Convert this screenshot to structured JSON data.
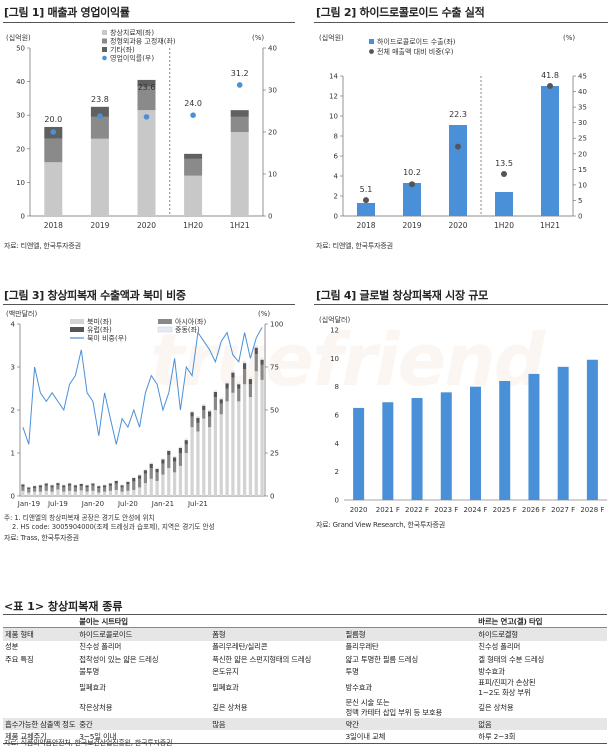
{
  "watermark": "truefriend",
  "fig1": {
    "title": "[그림 1] 매출과 영업이익률",
    "left_unit": "(십억원)",
    "right_unit": "(%)",
    "legend": [
      "창상치료제(좌)",
      "정형외과용 고정재(좌)",
      "기타(좌)",
      "영업이익률(우)"
    ],
    "colors": [
      "#c8c8c8",
      "#8a8a8a",
      "#606060",
      "#4a90d9"
    ],
    "categories": [
      "2018",
      "2019",
      "2020",
      "1H20",
      "1H21"
    ],
    "stacks": [
      [
        16,
        7,
        3.5
      ],
      [
        23,
        6.5,
        3
      ],
      [
        31.5,
        7,
        2
      ],
      [
        12,
        5,
        1.5
      ],
      [
        25,
        4.5,
        2
      ]
    ],
    "margin": [
      20.0,
      23.8,
      23.6,
      24.0,
      31.2
    ],
    "margin_labels": [
      "20.0",
      "23.8",
      "23.6",
      "24.0",
      "31.2"
    ],
    "ylim": [
      0,
      50
    ],
    "y2lim": [
      0,
      40
    ],
    "yticks": [
      "0",
      "10",
      "20",
      "30",
      "40",
      "50"
    ],
    "y2ticks": [
      "0",
      "10",
      "20",
      "30",
      "40"
    ],
    "source": "자료: 티앤엘, 한국투자증권"
  },
  "fig2": {
    "title": "[그림 2] 하이드로콜로이드 수출 실적",
    "left_unit": "(십억원)",
    "right_unit": "(%)",
    "legend": [
      "하이드로콜로이드 수출(좌)",
      "전체 매출액 대비 비중(우)"
    ],
    "colors": [
      "#4a90d9",
      "#555555"
    ],
    "categories": [
      "2018",
      "2019",
      "2020",
      "1H20",
      "1H21"
    ],
    "values": [
      1.3,
      3.3,
      9.1,
      2.4,
      13.0
    ],
    "share": [
      5.1,
      10.2,
      22.3,
      13.5,
      41.8
    ],
    "share_labels": [
      "5.1",
      "10.2",
      "22.3",
      "13.5",
      "41.8"
    ],
    "ylim": [
      0,
      14
    ],
    "y2lim": [
      0,
      45
    ],
    "yticks": [
      "0",
      "2",
      "4",
      "6",
      "8",
      "10",
      "12",
      "14"
    ],
    "y2ticks": [
      "0",
      "5",
      "10",
      "15",
      "20",
      "25",
      "30",
      "35",
      "40",
      "45"
    ],
    "source": "자료: 티앤엘, 한국투자증권"
  },
  "fig3": {
    "title": "[그림 3] 창상피복재 수출액과 북미 비중",
    "left_unit": "(백만달러)",
    "right_unit": "(%)",
    "legend": [
      "북미(좌)",
      "아시아(좌)",
      "유럽(좌)",
      "중동(좌)",
      "북미 비중(우)"
    ],
    "colors": [
      "#d3d3d3",
      "#888888",
      "#555555",
      "#e3eaf4",
      "#4a90d9"
    ],
    "xticks": [
      "Jan-19",
      "Jul-19",
      "Jan-20",
      "Jul-20",
      "Jan-21",
      "Jul-21"
    ],
    "ylim": [
      0,
      4
    ],
    "y2lim": [
      0,
      100
    ],
    "yticks": [
      "0",
      "1",
      "2",
      "3",
      "4"
    ],
    "y2ticks": [
      "0",
      "25",
      "50",
      "75",
      "100"
    ],
    "na": [
      0.12,
      0.08,
      0.1,
      0.1,
      0.12,
      0.1,
      0.15,
      0.1,
      0.12,
      0.1,
      0.13,
      0.1,
      0.12,
      0.08,
      0.1,
      0.12,
      0.14,
      0.1,
      0.12,
      0.14,
      0.2,
      0.3,
      0.4,
      0.35,
      0.5,
      0.65,
      0.55,
      0.7,
      1.0,
      1.6,
      1.5,
      1.8,
      1.6,
      2.0,
      1.9,
      2.2,
      2.4,
      2.2,
      2.6,
      2.3,
      2.9,
      2.7
    ],
    "asia": [
      0.1,
      0.08,
      0.08,
      0.1,
      0.12,
      0.1,
      0.1,
      0.1,
      0.12,
      0.1,
      0.1,
      0.1,
      0.12,
      0.1,
      0.1,
      0.12,
      0.15,
      0.1,
      0.15,
      0.2,
      0.2,
      0.22,
      0.25,
      0.2,
      0.25,
      0.3,
      0.25,
      0.3,
      0.2,
      0.25,
      0.2,
      0.2,
      0.25,
      0.3,
      0.25,
      0.3,
      0.35,
      0.3,
      0.35,
      0.3,
      0.4,
      0.35
    ],
    "europe": [
      0.05,
      0.04,
      0.05,
      0.05,
      0.05,
      0.05,
      0.05,
      0.05,
      0.05,
      0.05,
      0.05,
      0.05,
      0.05,
      0.05,
      0.05,
      0.05,
      0.06,
      0.05,
      0.06,
      0.08,
      0.08,
      0.08,
      0.1,
      0.08,
      0.1,
      0.1,
      0.1,
      0.12,
      0.1,
      0.1,
      0.12,
      0.1,
      0.12,
      0.12,
      0.1,
      0.12,
      0.12,
      0.1,
      0.14,
      0.12,
      0.15,
      0.12
    ],
    "mideast": [
      0.02,
      0.02,
      0.02,
      0.02,
      0.02,
      0.02,
      0.02,
      0.02,
      0.02,
      0.02,
      0.02,
      0.02,
      0.02,
      0.02,
      0.02,
      0.02,
      0.02,
      0.02,
      0.02,
      0.02,
      0.03,
      0.03,
      0.03,
      0.03,
      0.03,
      0.03,
      0.03,
      0.03,
      0.04,
      0.04,
      0.04,
      0.04,
      0.04,
      0.04,
      0.04,
      0.04,
      0.05,
      0.05,
      0.05,
      0.05,
      0.05,
      0.05
    ],
    "share": [
      40,
      30,
      75,
      60,
      55,
      60,
      55,
      50,
      65,
      70,
      85,
      60,
      55,
      35,
      60,
      45,
      30,
      45,
      40,
      50,
      40,
      60,
      70,
      65,
      50,
      60,
      80,
      50,
      75,
      70,
      95,
      90,
      85,
      78,
      90,
      95,
      82,
      78,
      95,
      80,
      92,
      98
    ],
    "notes": [
      "주: 1. 티앤엘의 창상피복재 공장은 경기도 안성에 위치",
      "2. HS code: 3005904000(조제 드레싱과 습포제), 지역은 경기도 안성"
    ],
    "source": "자료: Trass, 한국투자증권"
  },
  "fig4": {
    "title": "[그림 4] 글로벌 창상피복재 시장 규모",
    "left_unit": "(십억달러)",
    "color": "#4a90d9",
    "categories": [
      "2020",
      "2021 F",
      "2022 F",
      "2023 F",
      "2024 F",
      "2025 F",
      "2026 F",
      "2027 F",
      "2028 F"
    ],
    "values": [
      6.5,
      6.9,
      7.2,
      7.6,
      8.0,
      8.4,
      8.9,
      9.4,
      9.9
    ],
    "ylim": [
      0,
      12
    ],
    "yticks": [
      "0",
      "2",
      "4",
      "6",
      "8",
      "10",
      "12"
    ],
    "source": "자료: Grand View Research, 한국투자증권"
  },
  "table1": {
    "title": "<표 1> 창상피복재 종류",
    "header": [
      "",
      "붙이는 시트타입",
      "",
      "",
      "바르는 연고(겔) 타입"
    ],
    "rows": [
      [
        "제품 형태",
        "하이드로콜로이드",
        "폼형",
        "필름형",
        "하이드로겔형"
      ],
      [
        "성분",
        "친수성 폴리머",
        "폴리우레탄/실리콘",
        "폴리우레탄",
        "친수성 폴리머"
      ],
      [
        "주요 특징",
        "접착성이 있는 얇은 드레싱",
        "푹신한 얇은 스펀지형태의 드레싱",
        "얇고 투명한 필름 드레싱",
        "겔 형태의 수분 드레싱"
      ],
      [
        "",
        "불투명",
        "온도유지",
        "투명",
        "방수효과"
      ],
      [
        "",
        "밀폐효과",
        "밀폐효과",
        "방수효과",
        "표피/진피가 손상된\n1~2도 화상 부위"
      ],
      [
        "",
        "작은상처용",
        "깊은 상처용",
        "문신 시술 또는\n정맥 카테터 삽입 부위 등 보호용",
        "깊은 상처용"
      ],
      [
        "흡수가능한 삼출액 정도",
        "중간",
        "많음",
        "약간",
        "없음"
      ],
      [
        "제품 교체주기",
        "3~5일 이내",
        "",
        "3일이내 교체",
        "하루 2~3회"
      ]
    ],
    "source": "자료: 식품의약품안전처, 한국보건산업진흥원, 한국투자증권"
  }
}
